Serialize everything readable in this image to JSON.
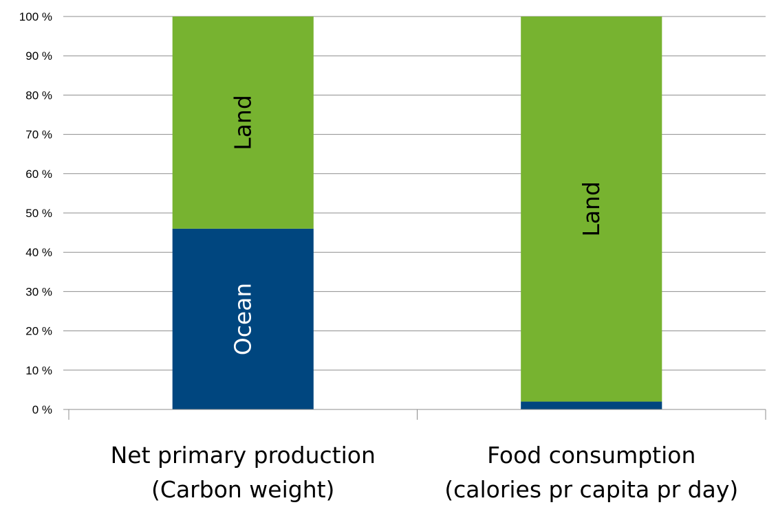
{
  "chart_data": {
    "type": "bar",
    "stacked": true,
    "percent": true,
    "categories": [
      [
        "Net primary production",
        "(Carbon weight)"
      ],
      [
        "Food consumption",
        "(calories pr capita pr day)"
      ]
    ],
    "series": [
      {
        "name": "",
        "color": "#00467f",
        "values": [
          46,
          2
        ],
        "segment_labels": [
          "Ocean",
          ""
        ],
        "label_color": "#ffffff"
      },
      {
        "name": "",
        "color": "#77b330",
        "values": [
          54,
          98
        ],
        "segment_labels": [
          "Land",
          "Land"
        ],
        "label_color": "#000000"
      }
    ],
    "ylim": [
      0,
      100
    ],
    "yticks": [
      0,
      10,
      20,
      30,
      40,
      50,
      60,
      70,
      80,
      90,
      100
    ],
    "ytick_suffix": " %",
    "grid": true,
    "legend": "none",
    "title": "",
    "xlabel": "",
    "ylabel": ""
  }
}
